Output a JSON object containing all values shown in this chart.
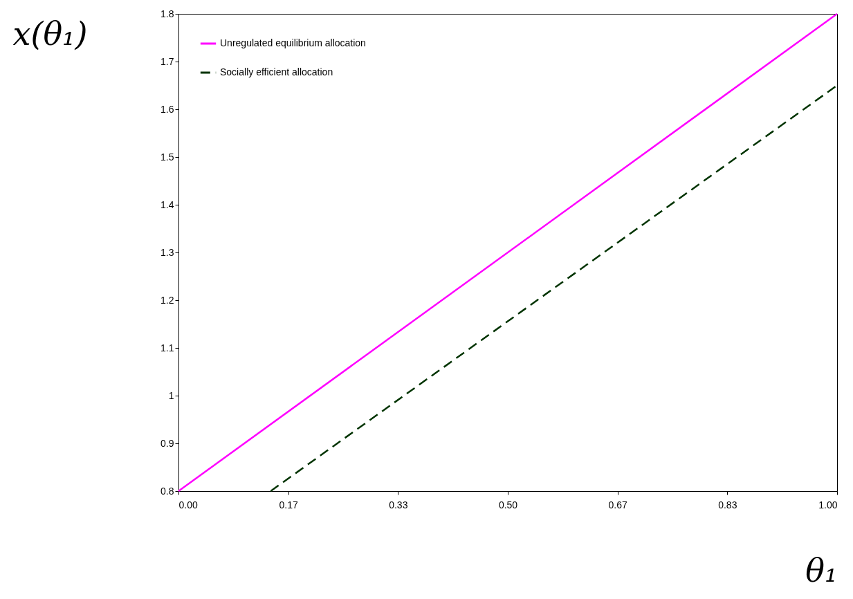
{
  "chart_data": {
    "type": "line",
    "xlabel": "θ₁",
    "ylabel": "x(θ₁)",
    "xlim": [
      0,
      1
    ],
    "ylim": [
      0.8,
      1.8
    ],
    "xticks": [
      {
        "value": 0,
        "label": "0.00"
      },
      {
        "value": 0.1667,
        "label": "0.17"
      },
      {
        "value": 0.3333,
        "label": "0.33"
      },
      {
        "value": 0.5,
        "label": "0.50"
      },
      {
        "value": 0.6667,
        "label": "0.67"
      },
      {
        "value": 0.8333,
        "label": "0.83"
      },
      {
        "value": 1,
        "label": "1.00"
      }
    ],
    "yticks": [
      0.8,
      0.9,
      1,
      1.1,
      1.2,
      1.3,
      1.4,
      1.5,
      1.6,
      1.7,
      1.8
    ],
    "grid": false,
    "legend": "top left",
    "marker": "none",
    "series": [
      {
        "name": "Unregulated equilibrium allocation",
        "color": "#ff00ff",
        "line_style": "solid",
        "x": [
          0,
          1
        ],
        "values": [
          0.8,
          1.8
        ]
      },
      {
        "name": "Socially efficient allocation",
        "color": "#003300",
        "line_style": "dashed",
        "x": [
          0.14,
          1
        ],
        "values": [
          0.8,
          1.65
        ]
      }
    ]
  }
}
